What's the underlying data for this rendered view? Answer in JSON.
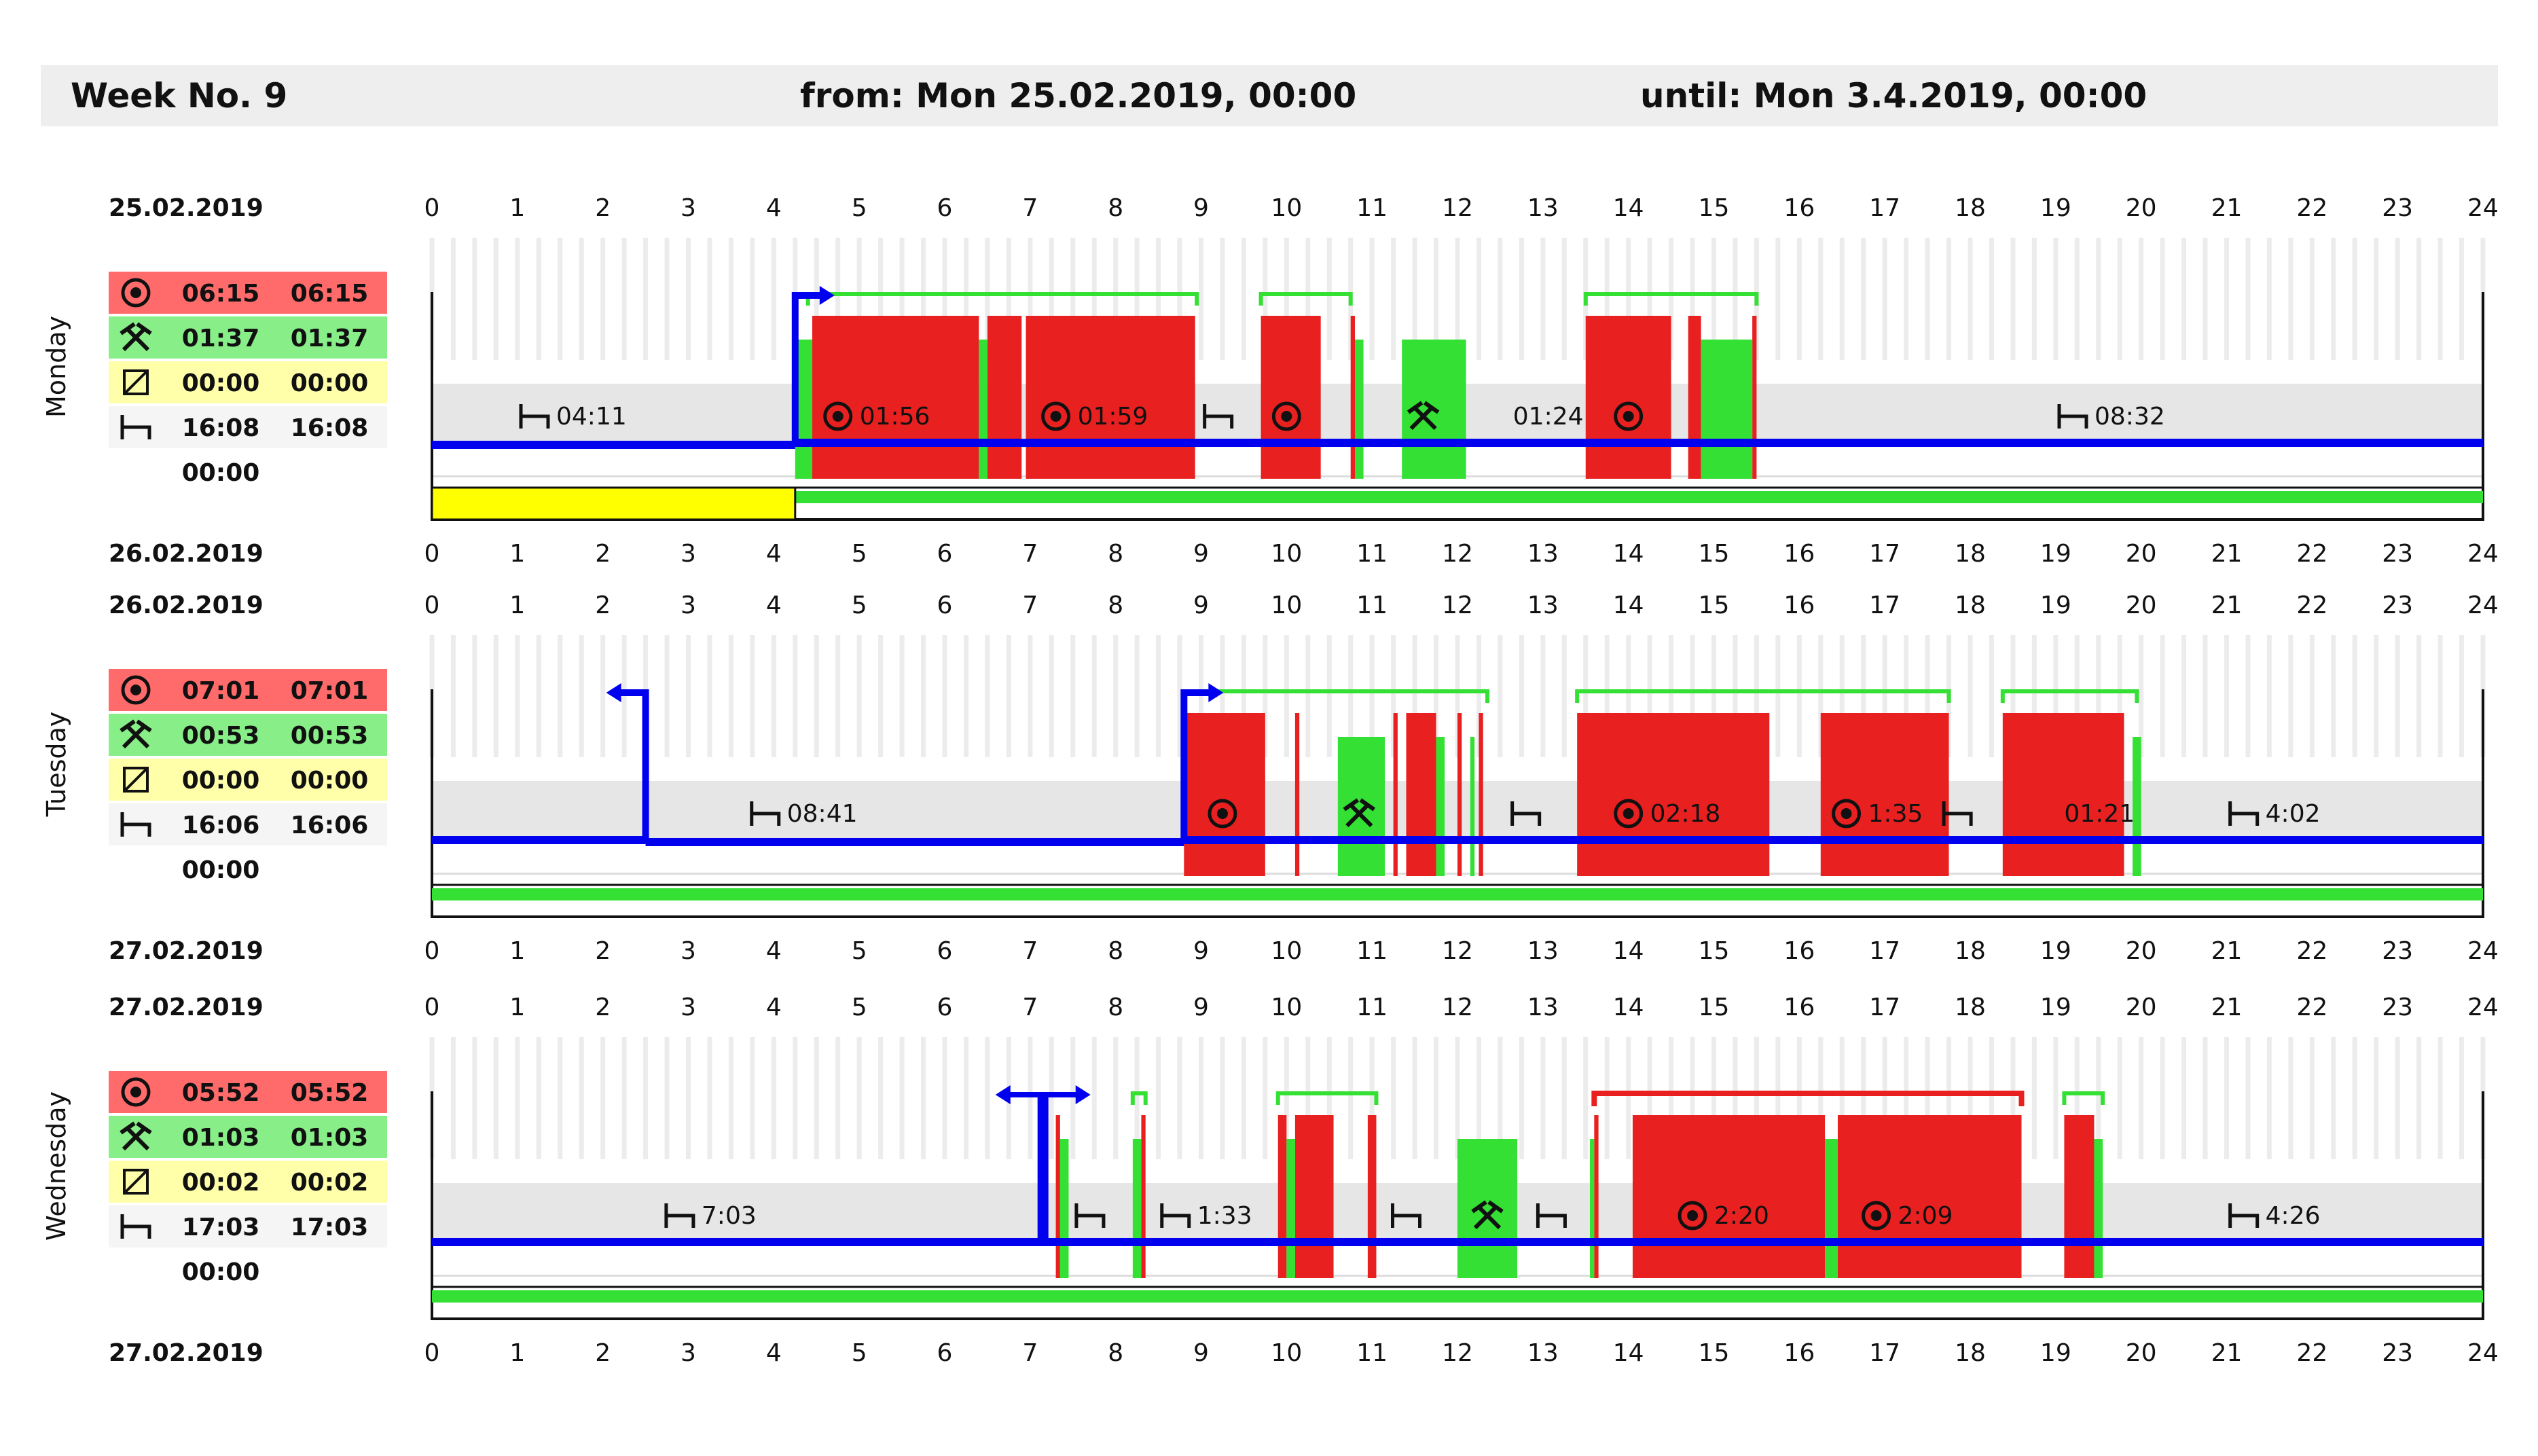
{
  "header": {
    "week": "Week No. 9",
    "from": "from: Mon 25.02.2019, 00:00",
    "until": "until: Mon 3.4.2019, 00:00"
  },
  "colors": {
    "driving": "#e82020",
    "work": "#33e033",
    "availability": "#ffff00",
    "rest_band": "#e6e6e6",
    "timeline": "#0000ee",
    "summary_driving_bg": "#ff6b6b",
    "summary_work_bg": "#88ee88",
    "summary_availability_bg": "#ffffaa",
    "summary_rest_bg": "#f5f5f5"
  },
  "icons": {
    "driving": "steering-wheel-icon",
    "work": "crossed-hammers-icon",
    "availability": "diagonal-box-icon",
    "rest": "bed-icon"
  },
  "chart_data": {
    "type": "timeline",
    "x_axis_hours": [
      "0",
      "1",
      "2",
      "3",
      "4",
      "5",
      "6",
      "7",
      "8",
      "9",
      "10",
      "11",
      "12",
      "13",
      "14",
      "15",
      "16",
      "17",
      "18",
      "19",
      "20",
      "21",
      "22",
      "23",
      "24"
    ],
    "xlim": [
      0,
      24
    ],
    "days": [
      {
        "name": "Monday",
        "date_top": "25.02.2019",
        "date_bottom": "26.02.2019",
        "summary": {
          "driving": [
            "06:15",
            "06:15"
          ],
          "work": [
            "01:37",
            "01:37"
          ],
          "availability": [
            "00:00",
            "00:00"
          ],
          "rest": [
            "16:08",
            "16:08"
          ],
          "other": "00:00"
        },
        "driving": [
          [
            4.45,
            6.4
          ],
          [
            6.5,
            6.9
          ],
          [
            6.95,
            8.93
          ],
          [
            9.7,
            10.4
          ],
          [
            10.75,
            10.8
          ],
          [
            13.5,
            14.5
          ],
          [
            14.7,
            14.85
          ],
          [
            15.45,
            15.5
          ]
        ],
        "work": [
          [
            4.25,
            4.45
          ],
          [
            6.4,
            6.5
          ],
          [
            10.8,
            10.9
          ],
          [
            11.35,
            12.1
          ],
          [
            14.85,
            15.45
          ]
        ],
        "availability": [
          [
            0,
            4.25
          ]
        ],
        "work_band": [
          [
            4.25,
            24
          ]
        ],
        "timeline_y": [
          [
            0,
            4.25,
            "low"
          ],
          [
            4.25,
            24,
            "mid"
          ]
        ],
        "trip_markers": [
          {
            "hour": 4.25,
            "direction": "right"
          }
        ],
        "shift_brackets": [
          [
            4.4,
            8.95
          ],
          [
            9.7,
            10.75
          ],
          [
            13.5,
            15.5
          ]
        ],
        "labels": [
          {
            "hour": 1.2,
            "icon": "rest",
            "text": "04:11"
          },
          {
            "hour": 4.75,
            "icon": "driving",
            "text": "01:56"
          },
          {
            "hour": 7.3,
            "icon": "driving",
            "text": "01:59"
          },
          {
            "hour": 9.2,
            "icon": "rest",
            "text": ""
          },
          {
            "hour": 10.0,
            "icon": "driving",
            "text": ""
          },
          {
            "hour": 11.6,
            "icon": "work",
            "text": ""
          },
          {
            "hour": 12.65,
            "icon": "",
            "text": "01:24"
          },
          {
            "hour": 14.0,
            "icon": "driving",
            "text": ""
          },
          {
            "hour": 19.2,
            "icon": "rest",
            "text": "08:32"
          }
        ]
      },
      {
        "name": "Tuesday",
        "date_top": "26.02.2019",
        "date_bottom": "27.02.2019",
        "summary": {
          "driving": [
            "07:01",
            "07:01"
          ],
          "work": [
            "00:53",
            "00:53"
          ],
          "availability": [
            "00:00",
            "00:00"
          ],
          "rest": [
            "16:06",
            "16:06"
          ],
          "other": "00:00"
        },
        "driving": [
          [
            8.8,
            9.75
          ],
          [
            10.1,
            10.15
          ],
          [
            11.25,
            11.3
          ],
          [
            11.4,
            11.75
          ],
          [
            12.0,
            12.05
          ],
          [
            12.25,
            12.3
          ],
          [
            13.4,
            15.65
          ],
          [
            16.25,
            17.75
          ],
          [
            18.38,
            19.8
          ]
        ],
        "work": [
          [
            10.6,
            11.15
          ],
          [
            11.75,
            11.85
          ],
          [
            12.15,
            12.2
          ],
          [
            19.9,
            20.0
          ]
        ],
        "availability": [],
        "work_band": [
          [
            0,
            24
          ]
        ],
        "timeline_y": [
          [
            0,
            2.5,
            "mid"
          ],
          [
            2.5,
            8.8,
            "low"
          ],
          [
            8.8,
            24,
            "mid"
          ]
        ],
        "trip_markers": [
          {
            "hour": 2.5,
            "direction": "left"
          },
          {
            "hour": 8.8,
            "direction": "right"
          }
        ],
        "shift_brackets": [
          [
            8.8,
            12.35
          ],
          [
            13.4,
            17.75
          ],
          [
            18.38,
            19.95
          ]
        ],
        "labels": [
          {
            "hour": 3.9,
            "icon": "rest",
            "text": "08:41"
          },
          {
            "hour": 9.25,
            "icon": "driving",
            "text": ""
          },
          {
            "hour": 10.85,
            "icon": "work",
            "text": ""
          },
          {
            "hour": 12.8,
            "icon": "rest",
            "text": ""
          },
          {
            "hour": 14.0,
            "icon": "driving",
            "text": "02:18"
          },
          {
            "hour": 16.55,
            "icon": "driving",
            "text": "1:35"
          },
          {
            "hour": 17.85,
            "icon": "rest",
            "text": ""
          },
          {
            "hour": 19.1,
            "icon": "",
            "text": "01:21"
          },
          {
            "hour": 21.2,
            "icon": "rest",
            "text": "4:02"
          }
        ]
      },
      {
        "name": "Wednesday",
        "date_top": "27.02.2019",
        "date_bottom": "27.02.2019",
        "summary": {
          "driving": [
            "05:52",
            "05:52"
          ],
          "work": [
            "01:03",
            "01:03"
          ],
          "availability": [
            "00:02",
            "00:02"
          ],
          "rest": [
            "17:03",
            "17:03"
          ],
          "other": "00:00"
        },
        "driving": [
          [
            7.3,
            7.35
          ],
          [
            8.3,
            8.35
          ],
          [
            9.9,
            10.0
          ],
          [
            10.1,
            10.55
          ],
          [
            10.95,
            11.05
          ],
          [
            13.6,
            13.65
          ],
          [
            14.05,
            16.3
          ],
          [
            16.45,
            18.6
          ],
          [
            19.1,
            19.45
          ]
        ],
        "work": [
          [
            7.35,
            7.45
          ],
          [
            8.2,
            8.3
          ],
          [
            10.0,
            10.1
          ],
          [
            12.0,
            12.7
          ],
          [
            13.55,
            13.6
          ],
          [
            16.3,
            16.45
          ],
          [
            19.45,
            19.55
          ]
        ],
        "availability": [],
        "work_band": [
          [
            0,
            24
          ]
        ],
        "timeline_y": [
          [
            0,
            7.15,
            "mid"
          ],
          [
            7.15,
            24,
            "mid"
          ]
        ],
        "trip_markers": [
          {
            "hour": 7.15,
            "direction": "both"
          }
        ],
        "shift_brackets": [
          [
            8.2,
            8.35
          ],
          [
            9.9,
            11.05
          ],
          [
            19.1,
            19.55
          ]
        ],
        "red_brackets": [
          [
            13.6,
            18.6
          ]
        ],
        "labels": [
          {
            "hour": 2.9,
            "icon": "rest",
            "text": "7:03"
          },
          {
            "hour": 7.7,
            "icon": "rest",
            "text": ""
          },
          {
            "hour": 8.7,
            "icon": "rest",
            "text": "1:33"
          },
          {
            "hour": 11.4,
            "icon": "rest",
            "text": ""
          },
          {
            "hour": 12.35,
            "icon": "work",
            "text": ""
          },
          {
            "hour": 13.1,
            "icon": "rest",
            "text": ""
          },
          {
            "hour": 14.75,
            "icon": "driving",
            "text": "2:20"
          },
          {
            "hour": 16.9,
            "icon": "driving",
            "text": "2:09"
          },
          {
            "hour": 21.2,
            "icon": "rest",
            "text": "4:26"
          }
        ]
      }
    ]
  }
}
